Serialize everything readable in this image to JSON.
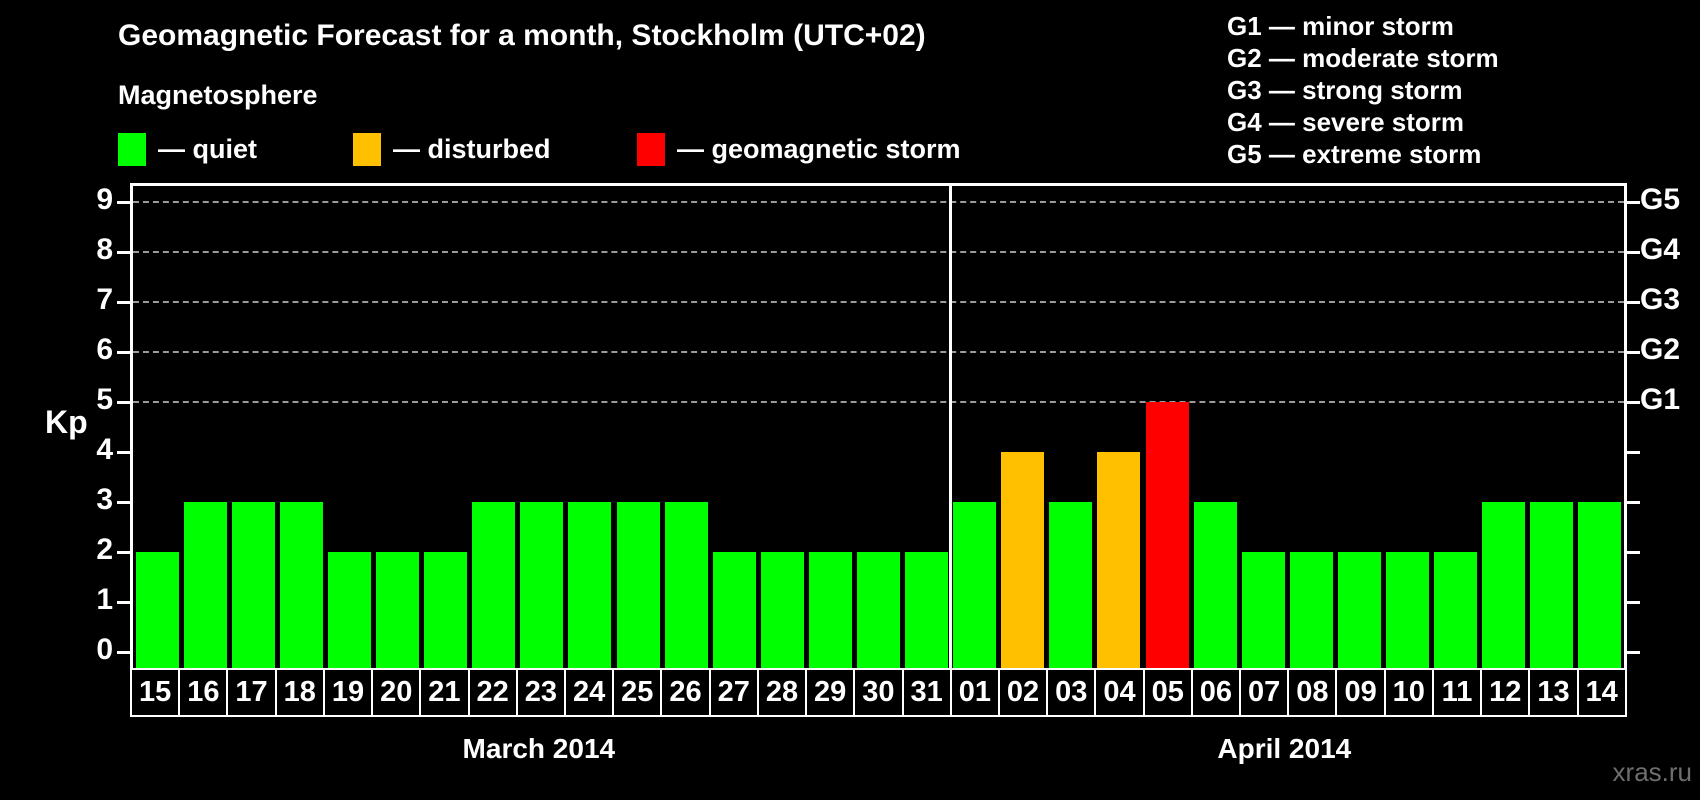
{
  "header": {
    "title": "Geomagnetic Forecast for a month, Stockholm (UTC+02)",
    "subtitle": "Magnetosphere"
  },
  "legend": {
    "items": [
      {
        "name": "quiet",
        "label": "— quiet",
        "color": "#00ff00"
      },
      {
        "name": "disturbed",
        "label": "— disturbed",
        "color": "#ffc000"
      },
      {
        "name": "geomagnetic-storm",
        "label": "— geomagnetic storm",
        "color": "#ff0000"
      }
    ]
  },
  "g_scale_legend": {
    "items": [
      "G1 — minor storm",
      "G2 — moderate storm",
      "G3 — strong storm",
      "G4 — severe storm",
      "G5 — extreme storm"
    ]
  },
  "watermark": "xras.ru",
  "chart_data": {
    "type": "bar",
    "title": "Geomagnetic Forecast for a month, Stockholm (UTC+02)",
    "ylabel_left": "Kp",
    "ylim": [
      0,
      9
    ],
    "yticks_left": [
      0,
      1,
      2,
      3,
      4,
      5,
      6,
      7,
      8,
      9
    ],
    "gridlines_at": [
      5,
      6,
      7,
      8,
      9
    ],
    "grid_style": "dashed",
    "g_levels": [
      {
        "label": "G1",
        "kp": 5
      },
      {
        "label": "G2",
        "kp": 6
      },
      {
        "label": "G3",
        "kp": 7
      },
      {
        "label": "G4",
        "kp": 8
      },
      {
        "label": "G5",
        "kp": 9
      }
    ],
    "colors": {
      "quiet": "#00ff00",
      "disturbed": "#ffc000",
      "storm": "#ff0000"
    },
    "sections": [
      {
        "label": "March 2014",
        "days": [
          {
            "day": "15",
            "kp": 2,
            "status": "quiet"
          },
          {
            "day": "16",
            "kp": 3,
            "status": "quiet"
          },
          {
            "day": "17",
            "kp": 3,
            "status": "quiet"
          },
          {
            "day": "18",
            "kp": 3,
            "status": "quiet"
          },
          {
            "day": "19",
            "kp": 2,
            "status": "quiet"
          },
          {
            "day": "20",
            "kp": 2,
            "status": "quiet"
          },
          {
            "day": "21",
            "kp": 2,
            "status": "quiet"
          },
          {
            "day": "22",
            "kp": 3,
            "status": "quiet"
          },
          {
            "day": "23",
            "kp": 3,
            "status": "quiet"
          },
          {
            "day": "24",
            "kp": 3,
            "status": "quiet"
          },
          {
            "day": "25",
            "kp": 3,
            "status": "quiet"
          },
          {
            "day": "26",
            "kp": 3,
            "status": "quiet"
          },
          {
            "day": "27",
            "kp": 2,
            "status": "quiet"
          },
          {
            "day": "28",
            "kp": 2,
            "status": "quiet"
          },
          {
            "day": "29",
            "kp": 2,
            "status": "quiet"
          },
          {
            "day": "30",
            "kp": 2,
            "status": "quiet"
          },
          {
            "day": "31",
            "kp": 2,
            "status": "quiet"
          }
        ]
      },
      {
        "label": "April 2014",
        "days": [
          {
            "day": "01",
            "kp": 3,
            "status": "quiet"
          },
          {
            "day": "02",
            "kp": 4,
            "status": "disturbed"
          },
          {
            "day": "03",
            "kp": 3,
            "status": "quiet"
          },
          {
            "day": "04",
            "kp": 4,
            "status": "disturbed"
          },
          {
            "day": "05",
            "kp": 5,
            "status": "storm"
          },
          {
            "day": "06",
            "kp": 3,
            "status": "quiet"
          },
          {
            "day": "07",
            "kp": 2,
            "status": "quiet"
          },
          {
            "day": "08",
            "kp": 2,
            "status": "quiet"
          },
          {
            "day": "09",
            "kp": 2,
            "status": "quiet"
          },
          {
            "day": "10",
            "kp": 2,
            "status": "quiet"
          },
          {
            "day": "11",
            "kp": 2,
            "status": "quiet"
          },
          {
            "day": "12",
            "kp": 3,
            "status": "quiet"
          },
          {
            "day": "13",
            "kp": 3,
            "status": "quiet"
          },
          {
            "day": "14",
            "kp": 3,
            "status": "quiet"
          }
        ]
      }
    ]
  }
}
